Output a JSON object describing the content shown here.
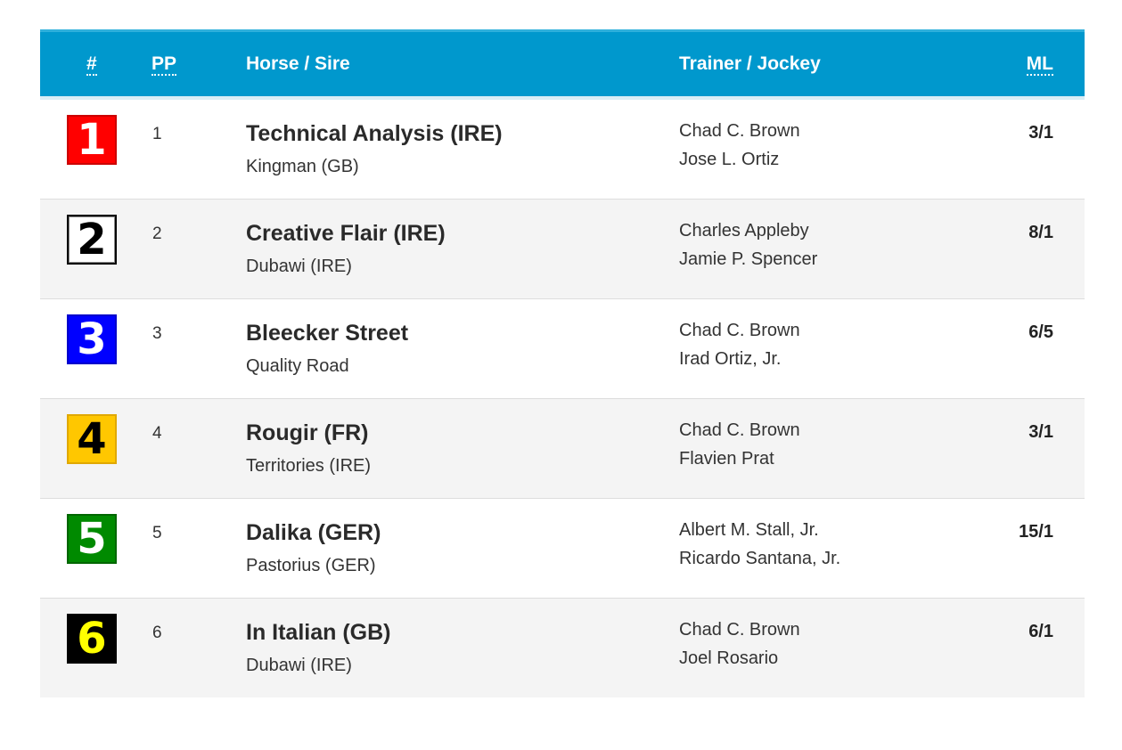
{
  "header": {
    "num": "#",
    "pp": "PP",
    "horse_sire": "Horse / Sire",
    "trainer_jockey": "Trainer / Jockey",
    "ml": "ML"
  },
  "colors": {
    "header_bg": "#0098cd",
    "row_alt_bg": "#f4f4f4"
  },
  "rows": [
    {
      "num": "1",
      "pp": "1",
      "horse": "Technical Analysis (IRE)",
      "sire": "Kingman (GB)",
      "trainer": "Chad C. Brown",
      "jockey": "Jose L. Ortiz",
      "ml": "3/1",
      "cloth": {
        "bg": "#ff0000",
        "fg": "#ffffff",
        "border": "#cc0000"
      }
    },
    {
      "num": "2",
      "pp": "2",
      "horse": "Creative Flair (IRE)",
      "sire": "Dubawi (IRE)",
      "trainer": "Charles Appleby",
      "jockey": "Jamie P. Spencer",
      "ml": "8/1",
      "cloth": {
        "bg": "#ffffff",
        "fg": "#000000",
        "border": "#000000"
      }
    },
    {
      "num": "3",
      "pp": "3",
      "horse": "Bleecker Street",
      "sire": "Quality Road",
      "trainer": "Chad C. Brown",
      "jockey": "Irad Ortiz, Jr.",
      "ml": "6/5",
      "cloth": {
        "bg": "#0000ff",
        "fg": "#ffffff",
        "border": "#0000cc"
      }
    },
    {
      "num": "4",
      "pp": "4",
      "horse": "Rougir (FR)",
      "sire": "Territories (IRE)",
      "trainer": "Chad C. Brown",
      "jockey": "Flavien Prat",
      "ml": "3/1",
      "cloth": {
        "bg": "#ffc700",
        "fg": "#000000",
        "border": "#e0a800"
      }
    },
    {
      "num": "5",
      "pp": "5",
      "horse": "Dalika (GER)",
      "sire": "Pastorius (GER)",
      "trainer": "Albert M. Stall, Jr.",
      "jockey": "Ricardo Santana, Jr.",
      "ml": "15/1",
      "cloth": {
        "bg": "#008a00",
        "fg": "#ffffff",
        "border": "#006600"
      }
    },
    {
      "num": "6",
      "pp": "6",
      "horse": "In Italian (GB)",
      "sire": "Dubawi (IRE)",
      "trainer": "Chad C. Brown",
      "jockey": "Joel Rosario",
      "ml": "6/1",
      "cloth": {
        "bg": "#000000",
        "fg": "#ffff00",
        "border": "#000000"
      }
    }
  ]
}
